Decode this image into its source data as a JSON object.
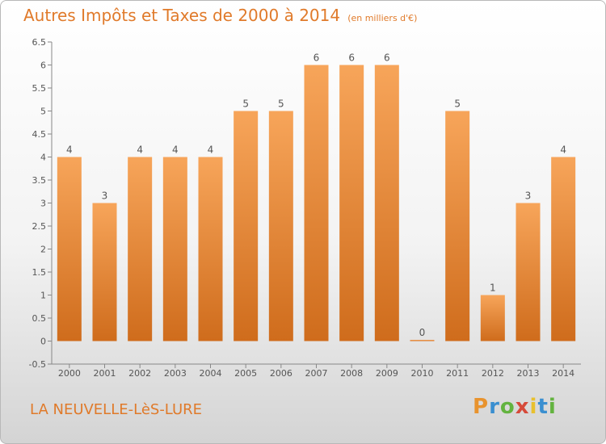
{
  "header": {
    "title": "Autres Impôts et Taxes de 2000 à 2014",
    "unit": "(en milliers d'€)"
  },
  "footer": {
    "place": "LA NEUVELLE-LèS-LURE",
    "logo_letters": [
      "P",
      "r",
      "o",
      "x",
      "i",
      "t",
      "i"
    ]
  },
  "colors": {
    "bar_light": "#f7a55a",
    "bar_dark": "#cf6c1c",
    "title": "#e07a2a",
    "axis": "#888888"
  },
  "chart_data": {
    "type": "bar",
    "categories": [
      "2000",
      "2001",
      "2002",
      "2003",
      "2004",
      "2005",
      "2006",
      "2007",
      "2008",
      "2009",
      "2010",
      "2011",
      "2012",
      "2013",
      "2014"
    ],
    "values": [
      4,
      3,
      4,
      4,
      4,
      5,
      5,
      6,
      6,
      6,
      0,
      5,
      1,
      3,
      4
    ],
    "data_labels": [
      "4",
      "3",
      "4",
      "4",
      "4",
      "5",
      "5",
      "6",
      "6",
      "6",
      "0",
      "5",
      "1",
      "3",
      "4"
    ],
    "yticks": [
      "-0.5",
      "0",
      "0.5",
      "1",
      "1.5",
      "2",
      "2.5",
      "3",
      "3.5",
      "4",
      "4.5",
      "5",
      "5.5",
      "6",
      "6.5"
    ],
    "ylim": [
      -0.5,
      6.5
    ],
    "title": "Autres Impôts et Taxes de 2000 à 2014",
    "xlabel": "",
    "ylabel": "",
    "grid": false
  }
}
